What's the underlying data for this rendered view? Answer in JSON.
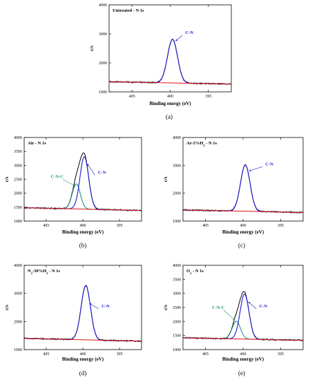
{
  "colors": {
    "envelope": "#000000",
    "fit": "#1a1acc",
    "background": "#dd1111",
    "cnc": "#1f8f7f",
    "cn_label": "#1a1acc",
    "cnc_label": "#1f8f7f"
  },
  "chart_data": [
    {
      "id": "a",
      "type": "line",
      "panel_label": "(a)",
      "title": "Untreated - N 1s",
      "xlabel": "Binding energy (eV)",
      "ylabel": "c/s",
      "xlim": [
        408,
        392
      ],
      "ylim": [
        1000,
        4000
      ],
      "xticks": [
        395,
        400,
        405
      ],
      "yticks": [
        1000,
        2000,
        3000,
        4000
      ],
      "xtick_labels": [
        "395",
        "400",
        "405"
      ],
      "ytick_labels": [
        "1000",
        "2000",
        "3000",
        "4000"
      ],
      "background": [
        1270,
        1350
      ],
      "components": [
        {
          "name": "C-N",
          "center": 399.7,
          "height": 1500,
          "fwhm": 1.55,
          "color": "fit"
        }
      ],
      "annotations": [
        {
          "text": "C-N",
          "color": "cn_label",
          "x": 397.5,
          "y": 3000,
          "arrow_to": [
            399.3,
            2750
          ]
        }
      ]
    },
    {
      "id": "b",
      "type": "line",
      "panel_label": "(b)",
      "title": "Air - N 1s",
      "xlabel": "Binding energy (eV)",
      "ylabel": "c/s",
      "xlim": [
        408,
        392
      ],
      "ylim": [
        1000,
        4000
      ],
      "xticks": [
        395,
        400,
        405
      ],
      "yticks": [
        1000,
        1500,
        2000,
        2500,
        3000,
        3500,
        4000
      ],
      "xtick_labels": [
        "395",
        "400",
        "405"
      ],
      "ytick_labels": [
        "1000",
        "1500",
        "2000",
        "2500",
        "3000",
        "3500",
        "4000"
      ],
      "background": [
        1380,
        1480
      ],
      "components": [
        {
          "name": "C-N",
          "center": 399.8,
          "height": 1880,
          "fwhm": 1.4,
          "color": "fit"
        },
        {
          "name": "C-N-C",
          "center": 400.9,
          "height": 900,
          "fwhm": 1.3,
          "color": "cnc"
        }
      ],
      "annotations": [
        {
          "text": "C-N",
          "color": "cn_label",
          "x": 397.4,
          "y": 2700,
          "arrow_to": [
            399.4,
            3050
          ]
        },
        {
          "text": "C-N-C",
          "color": "cnc_label",
          "x": 403.5,
          "y": 2550,
          "arrow_to": [
            401.0,
            2250
          ]
        }
      ]
    },
    {
      "id": "c",
      "type": "line",
      "panel_label": "(c)",
      "title": "Ar-5%H2 - N 1s",
      "title_parts": {
        "pre": "Ar-5%H",
        "sub": "2",
        "post": " - N 1s"
      },
      "xlabel": "Binding energy (eV)",
      "ylabel": "c/s",
      "xlim": [
        408,
        392
      ],
      "ylim": [
        1000,
        4000
      ],
      "xticks": [
        395,
        400,
        405
      ],
      "yticks": [
        1000,
        2000,
        3000,
        4000
      ],
      "xtick_labels": [
        "395",
        "400",
        "405"
      ],
      "ytick_labels": [
        "1000",
        "2000",
        "3000",
        "4000"
      ],
      "background": [
        1310,
        1400
      ],
      "components": [
        {
          "name": "C-N",
          "center": 399.7,
          "height": 1660,
          "fwhm": 1.5,
          "color": "fit"
        }
      ],
      "annotations": [
        {
          "text": "C-N",
          "color": "cn_label",
          "x": 396.5,
          "y": 3000,
          "arrow_to": [
            399.2,
            2800
          ]
        }
      ]
    },
    {
      "id": "d",
      "type": "line",
      "panel_label": "(d)",
      "title": "N2-30%H2 - N 1s",
      "title_parts": {
        "pre": "N",
        "sub": "2",
        "mid": "-30%H",
        "sub2": "2",
        "post": " - N 1s"
      },
      "xlabel": "Binding energy (eV)",
      "ylabel": "c/s",
      "xlim": [
        408,
        392
      ],
      "ylim": [
        1000,
        4000
      ],
      "xticks": [
        395,
        400,
        405
      ],
      "yticks": [
        1000,
        2000,
        3000,
        4000
      ],
      "xtick_labels": [
        "395",
        "400",
        "405"
      ],
      "ytick_labels": [
        "1000",
        "2000",
        "3000",
        "4000"
      ],
      "background": [
        1300,
        1400
      ],
      "components": [
        {
          "name": "C-N",
          "center": 399.6,
          "height": 1930,
          "fwhm": 1.5,
          "color": "fit"
        }
      ],
      "annotations": [
        {
          "text": "C-N",
          "color": "cn_label",
          "x": 396.9,
          "y": 2500,
          "arrow_to": [
            399.1,
            2650
          ]
        }
      ]
    },
    {
      "id": "e",
      "type": "line",
      "panel_label": "(e)",
      "title": "O2 - N 1s",
      "title_parts": {
        "pre": "O",
        "sub": "2",
        "post": " - N 1s"
      },
      "xlabel": "Binding energy (eV)",
      "ylabel": "c/s",
      "xlim": [
        408,
        392
      ],
      "ylim": [
        1000,
        4000
      ],
      "xticks": [
        395,
        400,
        405
      ],
      "yticks": [
        1000,
        1500,
        2000,
        2500,
        3000,
        3500,
        4000
      ],
      "xtick_labels": [
        "395",
        "400",
        "405"
      ],
      "ytick_labels": [
        "1000",
        "1500",
        "2000",
        "2500",
        "3000",
        "3500",
        "4000"
      ],
      "background": [
        1330,
        1420
      ],
      "components": [
        {
          "name": "C-N",
          "center": 399.8,
          "height": 1600,
          "fwhm": 1.4,
          "color": "fit"
        },
        {
          "name": "C-N-C",
          "center": 400.9,
          "height": 630,
          "fwhm": 1.3,
          "color": "cnc"
        }
      ],
      "annotations": [
        {
          "text": "C-N",
          "color": "cn_label",
          "x": 397.3,
          "y": 2500,
          "arrow_to": [
            399.3,
            2700
          ]
        },
        {
          "text": "C-N-C",
          "color": "cnc_label",
          "x": 403.3,
          "y": 2450,
          "arrow_to": [
            401.1,
            2050
          ]
        }
      ]
    }
  ]
}
